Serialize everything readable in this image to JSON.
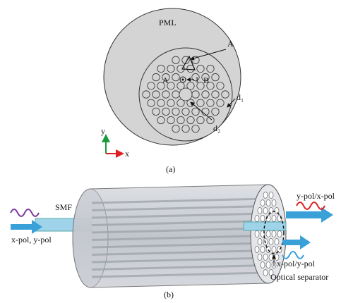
{
  "panel_a": {
    "pml": "PML",
    "a_top": "A",
    "a_left": "A",
    "b": "B",
    "core": "1",
    "d1": "d₁",
    "d2": "d₂",
    "axis_y": "y",
    "axis_x": "x",
    "caption": "(a)"
  },
  "panel_b": {
    "smf": "SMF",
    "input": "x-pol, y-pol",
    "output_top": "y-pol/x-pol",
    "output_bottom": "x-pol/y-pol",
    "separator": "Optical separator",
    "caption": "(b)"
  }
}
